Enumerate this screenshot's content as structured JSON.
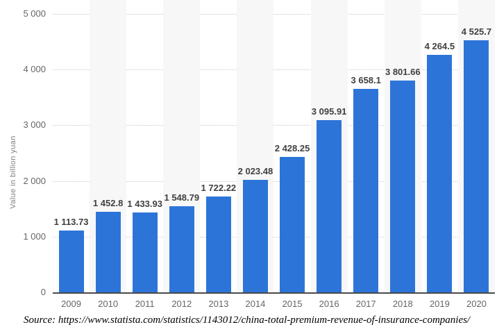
{
  "chart_data": {
    "type": "bar",
    "title": "",
    "categories": [
      "2009",
      "2010",
      "2011",
      "2012",
      "2013",
      "2014",
      "2015",
      "2016",
      "2017",
      "2018",
      "2019",
      "2020"
    ],
    "values": [
      1113.73,
      1452.8,
      1433.93,
      1548.79,
      1722.22,
      2023.48,
      2428.25,
      3095.91,
      3658.1,
      3801.66,
      4264.5,
      4525.7
    ],
    "value_labels": [
      "1 113.73",
      "1 452.8",
      "1 433.93",
      "1 548.79",
      "1 722.22",
      "2 023.48",
      "2 428.25",
      "3 095.91",
      "3 658.1",
      "3 801.66",
      "4 264.5",
      "4 525.7"
    ],
    "xlabel": "",
    "ylabel": "Value in billion yuan",
    "ylim": [
      0,
      5000
    ],
    "y_ticks": [
      0,
      1000,
      2000,
      3000,
      4000,
      5000
    ],
    "y_tick_labels": [
      "0",
      "1 000",
      "2 000",
      "3 000",
      "4 000",
      "5 000"
    ],
    "grid": "horizontal-dotted",
    "legend": "none",
    "bar_color": "#2D74D8",
    "stripe_color": "#f7f7f7",
    "striped_categories": [
      "2010",
      "2012",
      "2014",
      "2016",
      "2018",
      "2020"
    ]
  },
  "source": {
    "text": "Source: https://www.statista.com/statistics/1143012/china-total-premium-revenue-of-insurance-companies/"
  }
}
